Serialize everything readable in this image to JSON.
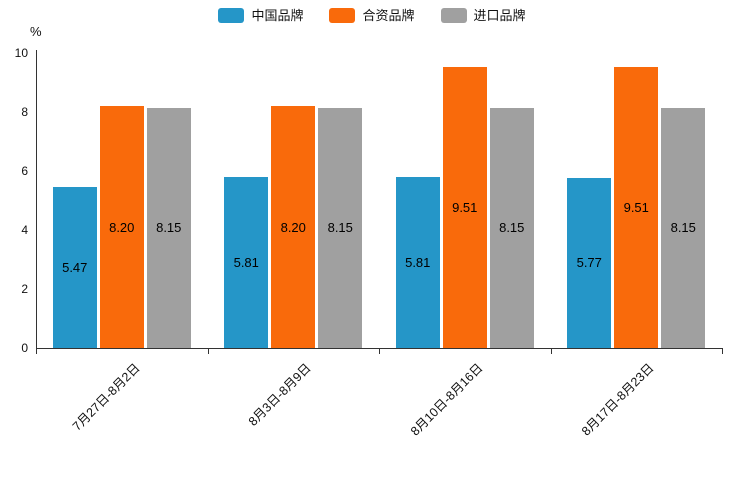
{
  "chart_data": {
    "type": "bar",
    "title": "",
    "unit": "%",
    "categories": [
      "7月27日-8月2日",
      "8月3日-8月9日",
      "8月10日-8月16日",
      "8月17日-8月23日"
    ],
    "series": [
      {
        "name": "中国品牌",
        "color": "#2596c8",
        "values": [
          5.47,
          5.81,
          5.81,
          5.77
        ],
        "labels": [
          "5.47",
          "5.81",
          "5.81",
          "5.77"
        ]
      },
      {
        "name": "合资品牌",
        "color": "#f96a0b",
        "values": [
          8.2,
          8.2,
          9.51,
          9.51
        ],
        "labels": [
          "8.20",
          "8.20",
          "9.51",
          "9.51"
        ]
      },
      {
        "name": "进口品牌",
        "color": "#a0a0a0",
        "values": [
          8.15,
          8.15,
          8.15,
          8.15
        ],
        "labels": [
          "8.15",
          "8.15",
          "8.15",
          "8.15"
        ]
      }
    ],
    "y_ticks": [
      0,
      2,
      4,
      6,
      8,
      10
    ],
    "ylim": [
      0,
      10
    ],
    "xlabel": "",
    "ylabel": "%",
    "legend_position": "top",
    "grid": false,
    "axis_color": "#333333",
    "label_color": "#000000"
  }
}
